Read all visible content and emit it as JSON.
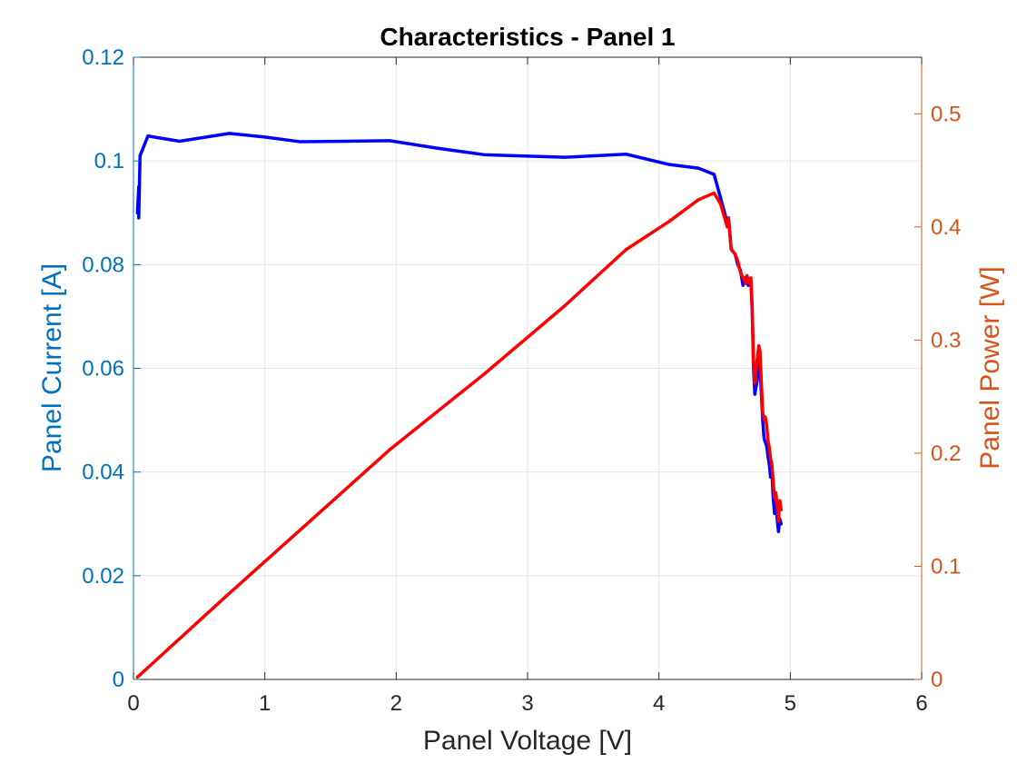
{
  "chart_data": {
    "type": "line",
    "title": "Characteristics - Panel 1",
    "xlabel": "Panel Voltage [V]",
    "ylabel_left": "Panel Current [A]",
    "ylabel_right": "Panel Power [W]",
    "xlim": [
      0,
      6
    ],
    "ylim_left": [
      0,
      0.12
    ],
    "ylim_right": [
      0,
      0.55
    ],
    "x_ticks": [
      0,
      1,
      2,
      3,
      4,
      5,
      6
    ],
    "x_tick_labels": [
      "0",
      "1",
      "2",
      "3",
      "4",
      "5",
      "6"
    ],
    "y_left_ticks": [
      0,
      0.02,
      0.04,
      0.06,
      0.08,
      0.1,
      0.12
    ],
    "y_left_tick_labels": [
      "0",
      "0.02",
      "0.04",
      "0.06",
      "0.08",
      "0.1",
      "0.12"
    ],
    "y_right_ticks": [
      0,
      0.1,
      0.2,
      0.3,
      0.4,
      0.5
    ],
    "y_right_tick_labels": [
      "0",
      "0.1",
      "0.2",
      "0.3",
      "0.4",
      "0.5"
    ],
    "grid": true,
    "colors": {
      "left_axis": "#0072BD",
      "right_axis": "#D95319",
      "current_line": "#0000FF",
      "power_line": "#FF0000",
      "grid": "#E6E6E6",
      "box": "#262626"
    },
    "series": [
      {
        "axis": "left",
        "color": "#0000FF",
        "points": [
          [
            0.03,
            0.09
          ],
          [
            0.04,
            0.095
          ],
          [
            0.04,
            0.089
          ],
          [
            0.05,
            0.101
          ],
          [
            0.11,
            0.1048
          ],
          [
            0.35,
            0.1038
          ],
          [
            0.73,
            0.1053
          ],
          [
            1.0,
            0.1046
          ],
          [
            1.27,
            0.1037
          ],
          [
            1.95,
            0.1039
          ],
          [
            2.3,
            0.1025
          ],
          [
            2.67,
            0.1012
          ],
          [
            3.28,
            0.1007
          ],
          [
            3.75,
            0.1013
          ],
          [
            4.08,
            0.0993
          ],
          [
            4.3,
            0.0986
          ],
          [
            4.42,
            0.0974
          ],
          [
            4.5,
            0.09
          ],
          [
            4.52,
            0.088
          ],
          [
            4.53,
            0.089
          ],
          [
            4.55,
            0.083
          ],
          [
            4.58,
            0.082
          ],
          [
            4.6,
            0.08
          ],
          [
            4.62,
            0.079
          ],
          [
            4.64,
            0.076
          ],
          [
            4.66,
            0.0775
          ],
          [
            4.68,
            0.076
          ],
          [
            4.7,
            0.077
          ],
          [
            4.71,
            0.071
          ],
          [
            4.72,
            0.06
          ],
          [
            4.73,
            0.055
          ],
          [
            4.75,
            0.058
          ],
          [
            4.76,
            0.0635
          ],
          [
            4.77,
            0.06
          ],
          [
            4.78,
            0.055
          ],
          [
            4.79,
            0.05
          ],
          [
            4.8,
            0.0465
          ],
          [
            4.82,
            0.045
          ],
          [
            4.83,
            0.043
          ],
          [
            4.84,
            0.0415
          ],
          [
            4.85,
            0.039
          ],
          [
            4.86,
            0.04
          ],
          [
            4.87,
            0.035
          ],
          [
            4.88,
            0.032
          ],
          [
            4.89,
            0.034
          ],
          [
            4.9,
            0.031
          ],
          [
            4.91,
            0.0285
          ],
          [
            4.92,
            0.031
          ],
          [
            4.93,
            0.03
          ]
        ]
      },
      {
        "axis": "right",
        "color": "#FF0000",
        "points": [
          [
            0.03,
            0.002
          ],
          [
            0.7,
            0.073
          ],
          [
            1.95,
            0.203
          ],
          [
            2.67,
            0.27
          ],
          [
            3.28,
            0.33
          ],
          [
            3.75,
            0.38
          ],
          [
            4.08,
            0.405
          ],
          [
            4.3,
            0.424
          ],
          [
            4.42,
            0.43
          ],
          [
            4.47,
            0.42
          ],
          [
            4.52,
            0.4
          ],
          [
            4.53,
            0.408
          ],
          [
            4.55,
            0.38
          ],
          [
            4.58,
            0.376
          ],
          [
            4.6,
            0.37
          ],
          [
            4.62,
            0.36
          ],
          [
            4.64,
            0.355
          ],
          [
            4.66,
            0.35
          ],
          [
            4.67,
            0.357
          ],
          [
            4.69,
            0.35
          ],
          [
            4.7,
            0.355
          ],
          [
            4.71,
            0.33
          ],
          [
            4.72,
            0.28
          ],
          [
            4.73,
            0.262
          ],
          [
            4.74,
            0.275
          ],
          [
            4.75,
            0.285
          ],
          [
            4.76,
            0.295
          ],
          [
            4.77,
            0.29
          ],
          [
            4.78,
            0.262
          ],
          [
            4.79,
            0.236
          ],
          [
            4.8,
            0.23
          ],
          [
            4.81,
            0.232
          ],
          [
            4.82,
            0.225
          ],
          [
            4.83,
            0.212
          ],
          [
            4.84,
            0.205
          ],
          [
            4.85,
            0.195
          ],
          [
            4.86,
            0.19
          ],
          [
            4.87,
            0.175
          ],
          [
            4.88,
            0.16
          ],
          [
            4.89,
            0.165
          ],
          [
            4.9,
            0.155
          ],
          [
            4.91,
            0.14
          ],
          [
            4.92,
            0.158
          ],
          [
            4.93,
            0.15
          ]
        ]
      }
    ]
  }
}
